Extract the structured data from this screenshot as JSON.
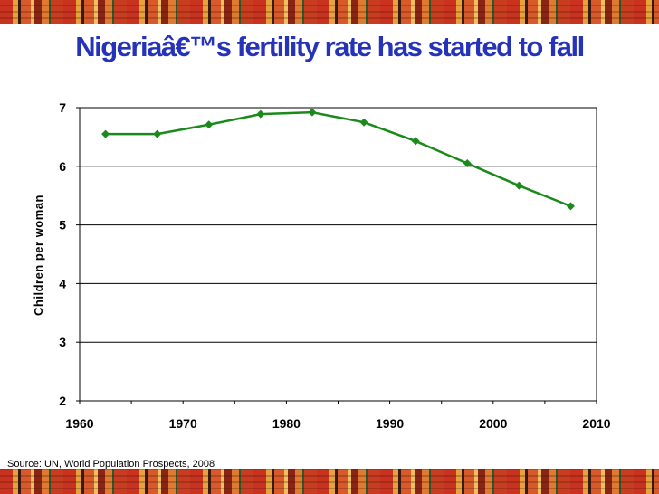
{
  "slide": {
    "title": "Nigeriaâ€™s fertility rate has started to fall",
    "source": "Source: UN, World Population Prospects, 2008"
  },
  "colors": {
    "title": "#2433b8",
    "series": "#1a8a1a",
    "grid": "#000000"
  },
  "chart_data": {
    "type": "line",
    "title": "Nigeriaâ€™s fertility rate has started to fall",
    "xlabel": "",
    "ylabel": "Children per woman",
    "xlim": [
      1960,
      2010
    ],
    "ylim": [
      2,
      7
    ],
    "xticks": [
      1960,
      1970,
      1980,
      1990,
      2000,
      2010
    ],
    "yticks": [
      2,
      3,
      4,
      5,
      6,
      7
    ],
    "grid": "horizontal",
    "series": [
      {
        "name": "Fertility rate",
        "x": [
          1962.5,
          1967.5,
          1972.5,
          1977.5,
          1982.5,
          1987.5,
          1992.5,
          1997.5,
          2002.5,
          2007.5
        ],
        "values": [
          6.55,
          6.55,
          6.71,
          6.89,
          6.92,
          6.75,
          6.43,
          6.05,
          5.67,
          5.32
        ]
      }
    ]
  }
}
